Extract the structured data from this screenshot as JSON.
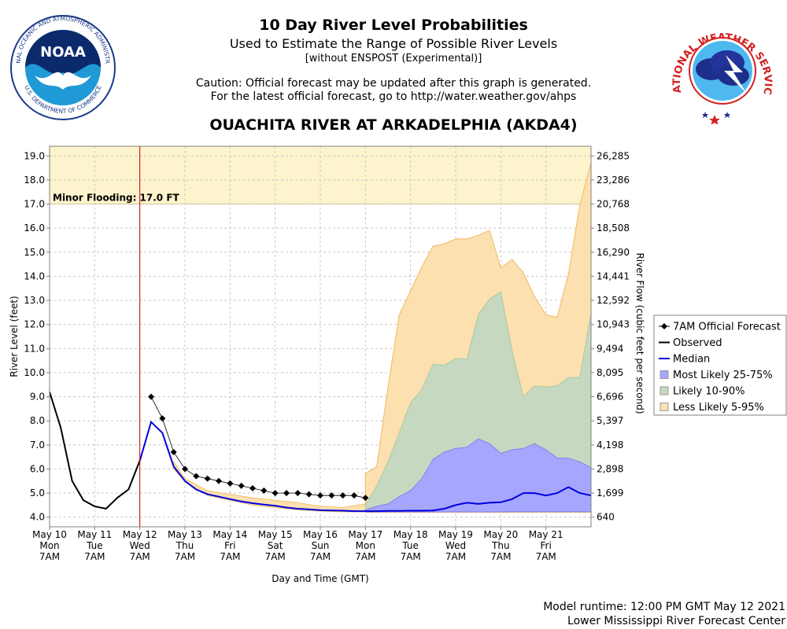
{
  "header": {
    "title": "10 Day River Level Probabilities",
    "subtitle": "Used to Estimate the Range of Possible River Levels",
    "subtitle2": "[without ENSPOST (Experimental)]",
    "caution_line1": "Caution: Official forecast may be updated after this graph is generated.",
    "caution_line2": "For the latest official forecast, go to http://water.weather.gov/ahps",
    "station": "OUACHITA RIVER AT ARKADELPHIA (AKDA4)"
  },
  "logos": {
    "noaa_text": "NOAA",
    "noaa_ring": "NATIONAL OCEANIC AND ATMOSPHERIC ADMINISTRATION",
    "noaa_ring_bottom": "U.S. DEPARTMENT OF COMMERCE",
    "nws_ring": "NATIONAL WEATHER SERVICE"
  },
  "footer": {
    "runtime": "Model runtime: 12:00 PM GMT May 12 2021",
    "center": "Lower Mississippi River Forecast Center"
  },
  "colors": {
    "observed": "#000000",
    "median": "#0000dd",
    "band_25_75": "#a6a6ff",
    "band_10_90": "#c6d9c0",
    "band_5_95": "#fde0b0",
    "flood_zone": "#fdf3cc",
    "current_time": "#cc0000",
    "forecast": "#000000"
  },
  "chart_data": {
    "type": "line",
    "xlabel": "Day and Time (GMT)",
    "ylabel": "River Level (feet)",
    "y2label": "River Flow (cubic feet per second)",
    "ylim": [
      3.6,
      19.4
    ],
    "xlim": [
      0,
      12
    ],
    "yticks": [
      "4.0",
      "5.0",
      "6.0",
      "7.0",
      "8.0",
      "9.0",
      "10.0",
      "11.0",
      "12.0",
      "13.0",
      "14.0",
      "15.0",
      "16.0",
      "17.0",
      "18.0",
      "19.0"
    ],
    "y2ticks": [
      {
        "stage": 4.0,
        "label": "640"
      },
      {
        "stage": 5.0,
        "label": "1,699"
      },
      {
        "stage": 6.0,
        "label": "2,898"
      },
      {
        "stage": 7.0,
        "label": "4,198"
      },
      {
        "stage": 8.0,
        "label": "5,397"
      },
      {
        "stage": 9.0,
        "label": "6,696"
      },
      {
        "stage": 10.0,
        "label": "8,095"
      },
      {
        "stage": 11.0,
        "label": "9,494"
      },
      {
        "stage": 12.0,
        "label": "10,943"
      },
      {
        "stage": 13.0,
        "label": "12,592"
      },
      {
        "stage": 14.0,
        "label": "14,441"
      },
      {
        "stage": 15.0,
        "label": "16,290"
      },
      {
        "stage": 16.0,
        "label": "18,508"
      },
      {
        "stage": 17.0,
        "label": "20,768"
      },
      {
        "stage": 18.0,
        "label": "23,286"
      },
      {
        "stage": 19.0,
        "label": "26,285"
      }
    ],
    "xticks": [
      {
        "day": 0,
        "date": "May 10",
        "weekday": "Mon",
        "time": "7AM"
      },
      {
        "day": 1,
        "date": "May 11",
        "weekday": "Tue",
        "time": "7AM"
      },
      {
        "day": 2,
        "date": "May 12",
        "weekday": "Wed",
        "time": "7AM"
      },
      {
        "day": 3,
        "date": "May 13",
        "weekday": "Thu",
        "time": "7AM"
      },
      {
        "day": 4,
        "date": "May 14",
        "weekday": "Fri",
        "time": "7AM"
      },
      {
        "day": 5,
        "date": "May 15",
        "weekday": "Sat",
        "time": "7AM"
      },
      {
        "day": 6,
        "date": "May 16",
        "weekday": "Sun",
        "time": "7AM"
      },
      {
        "day": 7,
        "date": "May 17",
        "weekday": "Mon",
        "time": "7AM"
      },
      {
        "day": 8,
        "date": "May 18",
        "weekday": "Tue",
        "time": "7AM"
      },
      {
        "day": 9,
        "date": "May 19",
        "weekday": "Wed",
        "time": "7AM"
      },
      {
        "day": 10,
        "date": "May 20",
        "weekday": "Thu",
        "time": "7AM"
      },
      {
        "day": 11,
        "date": "May 21",
        "weekday": "Fri",
        "time": "7AM"
      }
    ],
    "flood": {
      "label": "Minor Flooding: 17.0 FT",
      "stage": 17.0
    },
    "current_time_day": 2.0,
    "observed": {
      "name": "Observed",
      "x": [
        0,
        0.25,
        0.5,
        0.75,
        1.0,
        1.25,
        1.5,
        1.75,
        2.0
      ],
      "y": [
        9.2,
        7.7,
        5.5,
        4.7,
        4.45,
        4.35,
        4.8,
        5.15,
        6.35
      ]
    },
    "forecast": {
      "name": "7AM Official Forecast",
      "x": [
        2.25,
        2.5,
        2.75,
        3.0,
        3.25,
        3.5,
        3.75,
        4.0,
        4.25,
        4.5,
        4.75,
        5.0,
        5.25,
        5.5,
        5.75,
        6.0,
        6.25,
        6.5,
        6.75,
        7.0
      ],
      "y": [
        9.0,
        8.1,
        6.7,
        6.0,
        5.7,
        5.6,
        5.5,
        5.4,
        5.3,
        5.2,
        5.1,
        5.0,
        5.0,
        5.0,
        4.95,
        4.9,
        4.9,
        4.9,
        4.9,
        4.8
      ]
    },
    "median": {
      "name": "Median",
      "x": [
        2.0,
        2.25,
        2.5,
        2.75,
        3.0,
        3.25,
        3.5,
        3.75,
        4.0,
        4.25,
        4.5,
        4.75,
        5.0,
        5.25,
        5.5,
        5.75,
        6.0,
        6.25,
        6.5,
        6.75,
        7.0,
        7.25,
        7.5,
        7.75,
        8.0,
        8.25,
        8.5,
        8.75,
        9.0,
        9.25,
        9.5,
        9.75,
        10.0,
        10.25,
        10.5,
        10.75,
        11.0,
        11.25,
        11.5,
        11.75,
        12.0
      ],
      "y": [
        6.35,
        7.95,
        7.5,
        6.1,
        5.5,
        5.15,
        4.95,
        4.85,
        4.75,
        4.65,
        4.58,
        4.52,
        4.47,
        4.4,
        4.35,
        4.32,
        4.29,
        4.28,
        4.27,
        4.25,
        4.25,
        4.25,
        4.26,
        4.26,
        4.27,
        4.27,
        4.28,
        4.35,
        4.5,
        4.6,
        4.55,
        4.6,
        4.62,
        4.75,
        5.0,
        5.0,
        4.9,
        5.0,
        5.25,
        5.0,
        4.9
      ]
    },
    "bands_x": [
      7.0,
      7.25,
      7.5,
      7.75,
      8.0,
      8.25,
      8.5,
      8.75,
      9.0,
      9.25,
      9.5,
      9.75,
      10.0,
      10.25,
      10.5,
      10.75,
      11.0,
      11.25,
      11.5,
      11.75,
      12.0
    ],
    "band_25_75": {
      "name": "Most Likely 25-75%",
      "lower": [
        4.22,
        4.22,
        4.22,
        4.22,
        4.22,
        4.22,
        4.22,
        4.22,
        4.22,
        4.22,
        4.22,
        4.22,
        4.22,
        4.23,
        4.23,
        4.23,
        4.23,
        4.23,
        4.23,
        4.23,
        4.23
      ],
      "upper": [
        4.3,
        4.45,
        4.55,
        4.85,
        5.1,
        5.6,
        6.4,
        6.7,
        6.85,
        6.9,
        7.25,
        7.05,
        6.65,
        6.8,
        6.85,
        7.05,
        6.8,
        6.45,
        6.45,
        6.3,
        6.05
      ]
    },
    "band_10_90": {
      "name": "Likely 10-90%",
      "lower": [
        4.22,
        4.22,
        4.22,
        4.22,
        4.22,
        4.22,
        4.22,
        4.22,
        4.22,
        4.22,
        4.22,
        4.22,
        4.22,
        4.22,
        4.22,
        4.22,
        4.22,
        4.22,
        4.22,
        4.22,
        4.22
      ],
      "upper": [
        4.5,
        5.3,
        6.3,
        7.5,
        8.75,
        9.3,
        10.35,
        10.3,
        10.6,
        10.55,
        12.4,
        13.05,
        13.35,
        10.9,
        9.0,
        9.45,
        9.4,
        9.45,
        9.8,
        9.8,
        12.45
      ]
    },
    "band_5_95": {
      "name": "Less Likely 5-95%",
      "lower": [
        4.2,
        4.2,
        4.2,
        4.2,
        4.2,
        4.2,
        4.2,
        4.2,
        4.2,
        4.2,
        4.2,
        4.2,
        4.2,
        4.2,
        4.2,
        4.2,
        4.2,
        4.2,
        4.2,
        4.2,
        4.2
      ],
      "upper": [
        5.8,
        6.1,
        9.4,
        12.4,
        13.4,
        14.4,
        15.25,
        15.35,
        15.55,
        15.55,
        15.7,
        15.9,
        14.35,
        14.7,
        14.15,
        13.15,
        12.4,
        12.3,
        14.1,
        16.95,
        18.7
      ]
    },
    "band_5_95_early": {
      "x": [
        2.75,
        3.0,
        3.5,
        4.0,
        4.5,
        5.0,
        5.5,
        6.0,
        6.5,
        7.0
      ],
      "lower": [
        6.0,
        5.5,
        4.9,
        4.7,
        4.5,
        4.4,
        4.3,
        4.25,
        4.22,
        4.22
      ],
      "upper": [
        6.3,
        5.6,
        5.1,
        4.95,
        4.8,
        4.7,
        4.6,
        4.45,
        4.4,
        4.55
      ]
    },
    "legend": [
      {
        "key": "forecast",
        "label": "7AM Official Forecast"
      },
      {
        "key": "observed",
        "label": "Observed"
      },
      {
        "key": "median",
        "label": "Median"
      },
      {
        "key": "band_25_75",
        "label": "Most Likely 25-75%"
      },
      {
        "key": "band_10_90",
        "label": "Likely 10-90%"
      },
      {
        "key": "band_5_95",
        "label": "Less Likely 5-95%"
      }
    ]
  }
}
